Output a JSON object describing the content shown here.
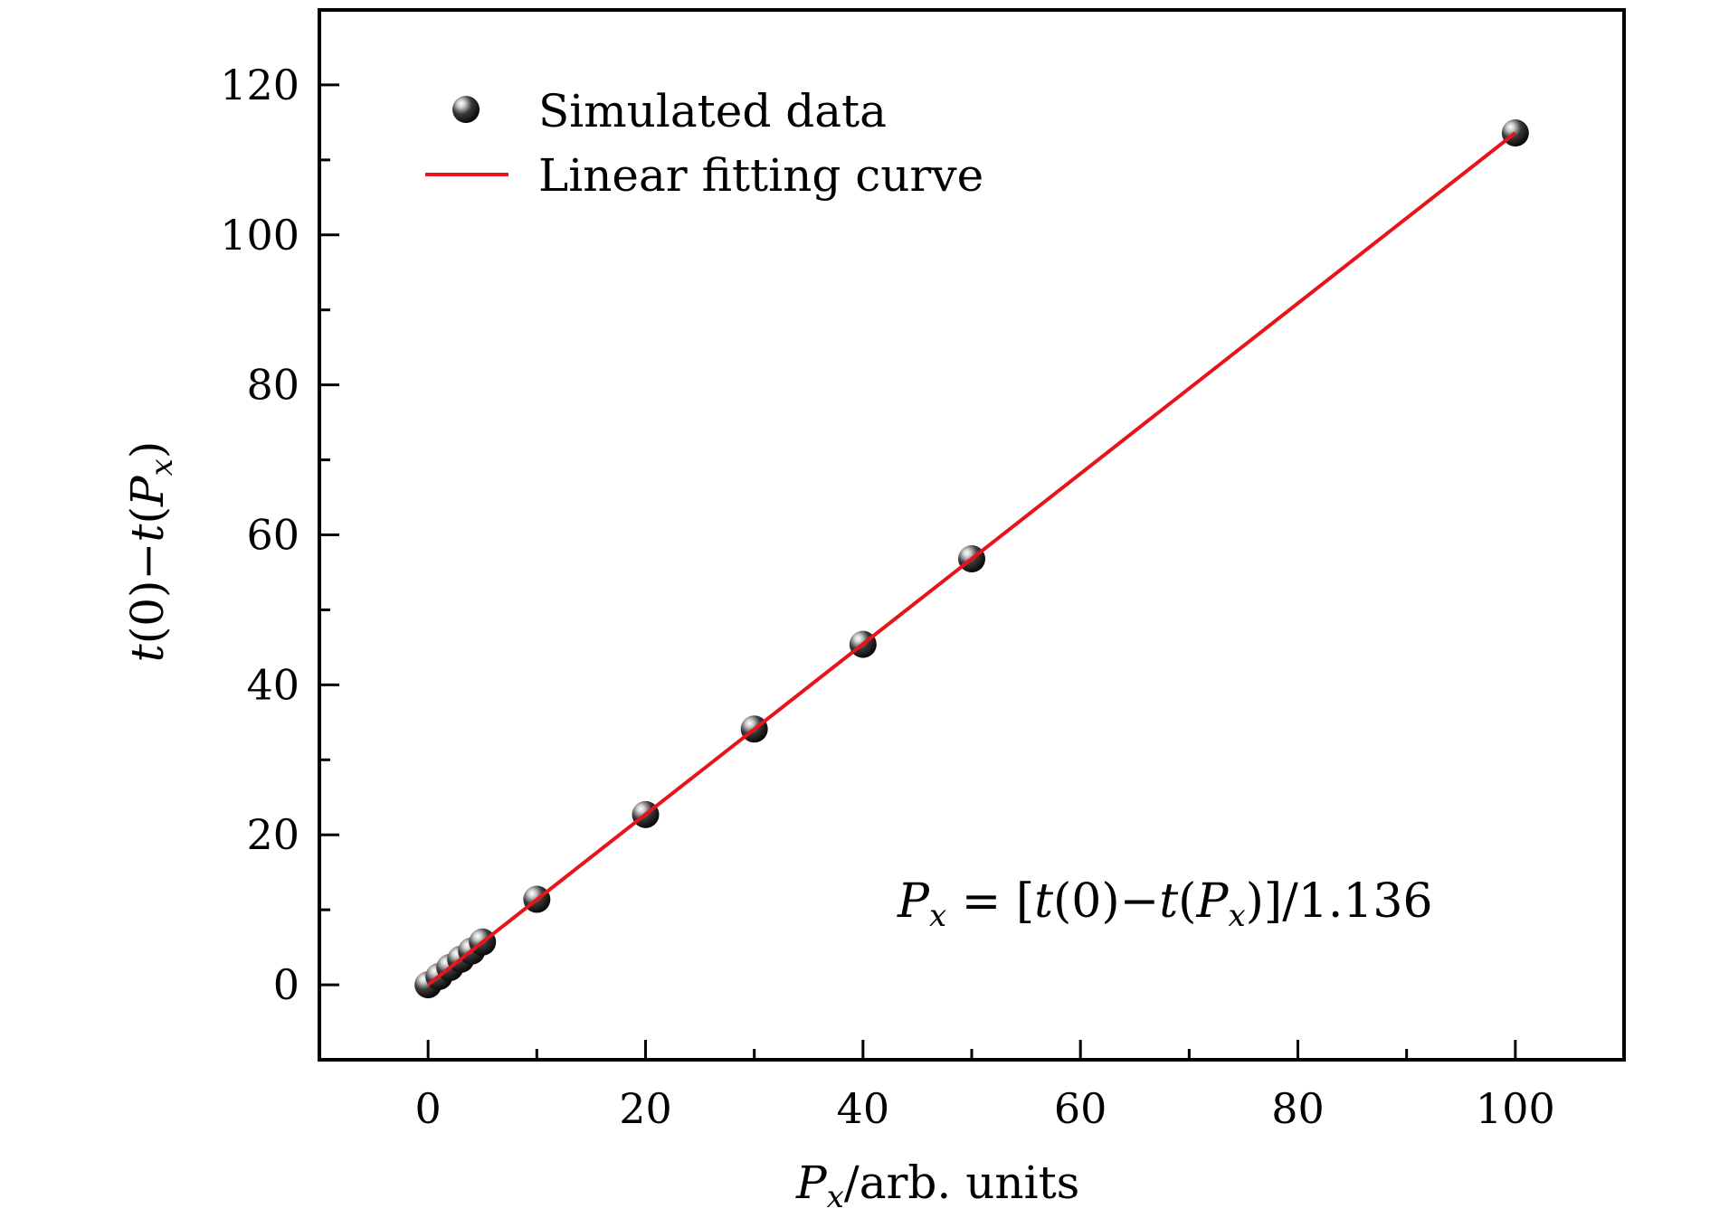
{
  "chart_data": {
    "type": "scatter",
    "xlabel": {
      "var": "P",
      "sub": "x",
      "rest": "/arb. units"
    },
    "ylabel": {
      "t1": "t",
      "mid1": "(0)−",
      "t2": "t",
      "mid2": "(",
      "var": "P",
      "sub": "x",
      "end": ")"
    },
    "xlim": [
      -10,
      110
    ],
    "ylim": [
      -10,
      130
    ],
    "xticks": [
      0,
      20,
      40,
      60,
      80,
      100
    ],
    "yticks": [
      0,
      20,
      40,
      60,
      80,
      100,
      120
    ],
    "grid": false,
    "legend_position": "top-left",
    "series": [
      {
        "name": "Simulated data",
        "kind": "scatter",
        "color": "#111111",
        "points": [
          [
            0,
            0
          ],
          [
            1,
            1.1
          ],
          [
            2,
            2.3
          ],
          [
            3,
            3.4
          ],
          [
            4,
            4.5
          ],
          [
            5,
            5.7
          ],
          [
            10,
            11.4
          ],
          [
            20,
            22.7
          ],
          [
            30,
            34.1
          ],
          [
            40,
            45.4
          ],
          [
            50,
            56.8
          ],
          [
            100,
            113.6
          ]
        ]
      },
      {
        "name": "Linear fitting curve",
        "kind": "line",
        "color": "#e8141b",
        "slope": 1.136,
        "intercept": 0,
        "x_range": [
          0,
          100
        ]
      }
    ],
    "annotation": {
      "var": "P",
      "sub": "x",
      "eq": " = [",
      "t1": "t",
      "mid1": "(0)−",
      "t2": "t",
      "mid2": "(",
      "var2": "P",
      "sub2": "x",
      "tail": ")]/1.136"
    }
  }
}
